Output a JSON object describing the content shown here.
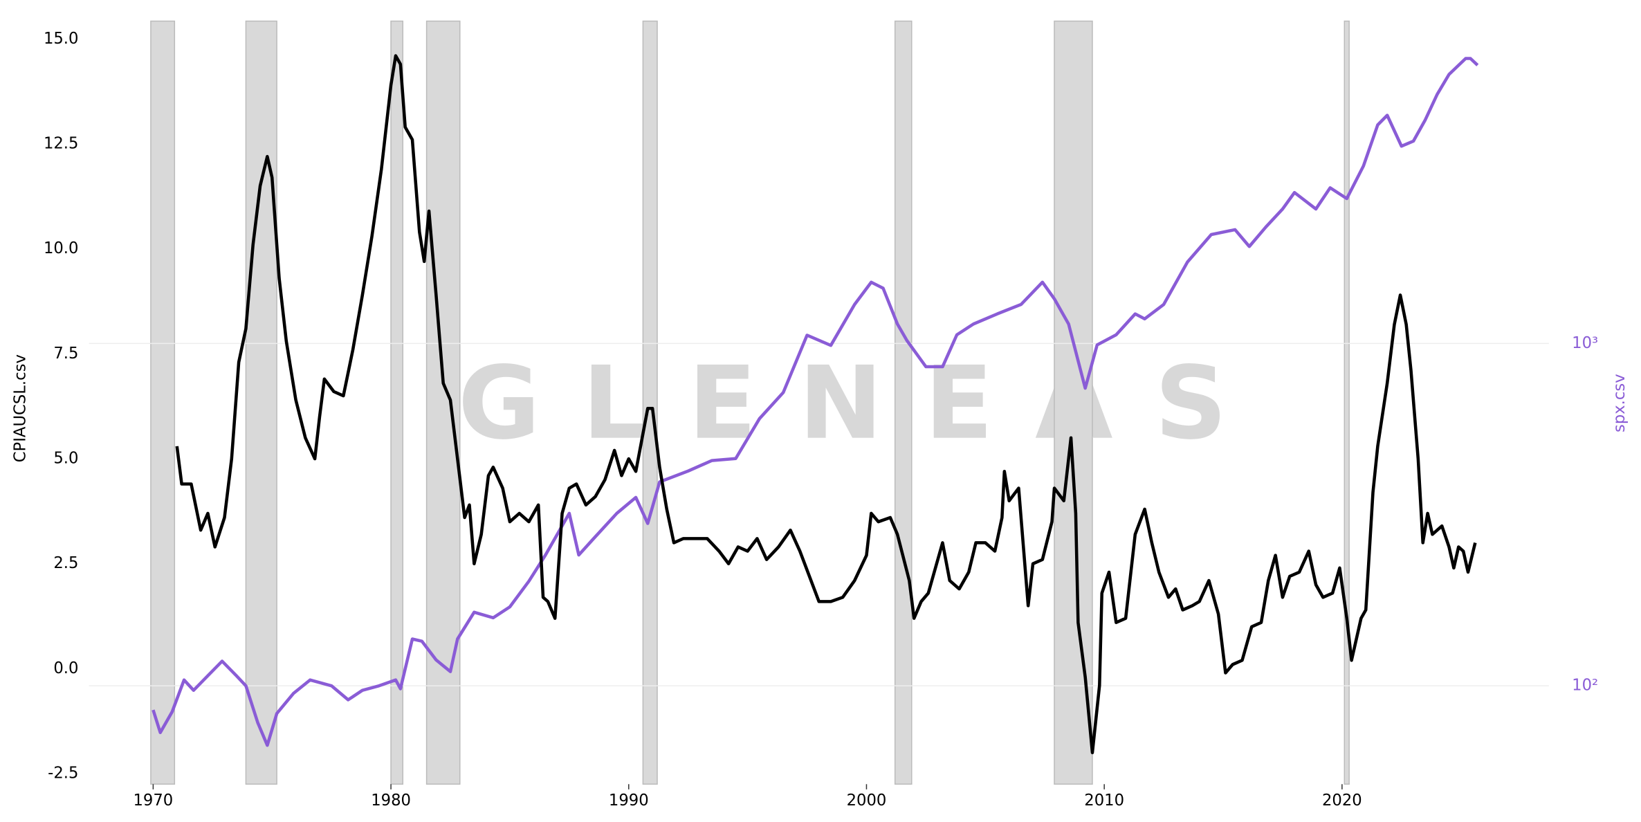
{
  "chart_data": {
    "type": "line",
    "watermark": "GLENEAS",
    "ylabel": "CPIAUCSL.csv",
    "y2label": "spx.csv",
    "y2log": true,
    "xlim": [
      1967.3,
      2028.7
    ],
    "xticks": [
      1970,
      1980,
      1990,
      2000,
      2010,
      2020
    ],
    "ylim": [
      -2.75,
      15.5
    ],
    "yticks": [
      {
        "value": 15,
        "label": "15.0"
      },
      12.5,
      {
        "value": 10,
        "label": "10.0"
      },
      7.5,
      {
        "value": 5,
        "label": "5.0"
      },
      2.5,
      {
        "value": 0,
        "label": "0.0"
      },
      -2.5
    ],
    "y2lim": [
      51.6,
      8930
    ],
    "y2ticks": [
      {
        "value": 100,
        "label": "10²"
      },
      {
        "value": 1000,
        "label": "10³"
      }
    ],
    "y2grid": true,
    "recession_color": "#d9d9d9",
    "recessions": [
      [
        1969.9,
        1970.9
      ],
      [
        1973.9,
        1975.2
      ],
      [
        1980.0,
        1980.5
      ],
      [
        1981.5,
        1982.9
      ],
      [
        1990.6,
        1991.2
      ],
      [
        2001.2,
        2001.9
      ],
      [
        2007.9,
        2009.5
      ],
      [
        2020.1,
        2020.3
      ]
    ],
    "series": [
      {
        "color": "#000000",
        "x": [
          1971.0,
          1971.2,
          1971.6,
          1972.0,
          1972.3,
          1972.6,
          1973.0,
          1973.3,
          1973.6,
          1973.9,
          1974.2,
          1974.5,
          1974.8,
          1975.0,
          1975.3,
          1975.6,
          1976.0,
          1976.4,
          1976.8,
          1977.0,
          1977.2,
          1977.6,
          1978.0,
          1978.4,
          1978.8,
          1979.2,
          1979.6,
          1980.0,
          1980.2,
          1980.4,
          1980.6,
          1980.9,
          1981.2,
          1981.4,
          1981.6,
          1981.9,
          1982.2,
          1982.5,
          1982.8,
          1983.1,
          1983.3,
          1983.5,
          1983.8,
          1984.1,
          1984.3,
          1984.7,
          1985.0,
          1985.4,
          1985.8,
          1986.2,
          1986.4,
          1986.6,
          1986.9,
          1987.2,
          1987.5,
          1987.8,
          1988.2,
          1988.6,
          1989.0,
          1989.4,
          1989.7,
          1990.0,
          1990.3,
          1990.8,
          1991.0,
          1991.3,
          1991.6,
          1991.9,
          1992.3,
          1992.8,
          1993.3,
          1993.8,
          1994.2,
          1994.6,
          1995.0,
          1995.4,
          1995.8,
          1996.3,
          1996.8,
          1997.2,
          1997.6,
          1998.0,
          1998.5,
          1999.0,
          1999.5,
          2000.0,
          2000.2,
          2000.5,
          2001.0,
          2001.3,
          2001.8,
          2002.0,
          2002.3,
          2002.6,
          2003.0,
          2003.2,
          2003.5,
          2003.9,
          2004.3,
          2004.6,
          2005.0,
          2005.4,
          2005.7,
          2005.8,
          2006.0,
          2006.4,
          2006.8,
          2007.0,
          2007.4,
          2007.8,
          2007.9,
          2008.3,
          2008.6,
          2008.8,
          2008.9,
          2009.2,
          2009.5,
          2009.8,
          2009.9,
          2010.2,
          2010.5,
          2010.9,
          2011.3,
          2011.7,
          2012.0,
          2012.3,
          2012.7,
          2013.0,
          2013.3,
          2013.7,
          2014.0,
          2014.4,
          2014.8,
          2015.1,
          2015.4,
          2015.8,
          2016.2,
          2016.6,
          2016.9,
          2017.2,
          2017.5,
          2017.8,
          2018.2,
          2018.6,
          2018.9,
          2019.2,
          2019.6,
          2019.9,
          2020.2,
          2020.4,
          2020.8,
          2021.0,
          2021.3,
          2021.5,
          2021.9,
          2022.2,
          2022.45,
          2022.7,
          2022.9,
          2023.2,
          2023.4,
          2023.6,
          2023.8,
          2024.2,
          2024.5,
          2024.7,
          2024.9,
          2025.1,
          2025.3,
          2025.6
        ],
        "values": [
          5.3,
          4.4,
          4.4,
          3.3,
          3.7,
          2.9,
          3.6,
          5.0,
          7.3,
          8.1,
          10.1,
          11.5,
          12.2,
          11.7,
          9.3,
          7.8,
          6.4,
          5.5,
          5.0,
          6.0,
          6.9,
          6.6,
          6.5,
          7.6,
          8.9,
          10.3,
          11.9,
          13.9,
          14.6,
          14.4,
          12.9,
          12.6,
          10.4,
          9.7,
          10.9,
          8.9,
          6.8,
          6.4,
          5.0,
          3.6,
          3.9,
          2.5,
          3.2,
          4.6,
          4.8,
          4.3,
          3.5,
          3.7,
          3.5,
          3.9,
          1.7,
          1.6,
          1.2,
          3.7,
          4.3,
          4.4,
          3.9,
          4.1,
          4.5,
          5.2,
          4.6,
          5.0,
          4.7,
          6.2,
          6.2,
          4.8,
          3.8,
          3.0,
          3.1,
          3.1,
          3.1,
          2.8,
          2.5,
          2.9,
          2.8,
          3.1,
          2.6,
          2.9,
          3.3,
          2.8,
          2.2,
          1.6,
          1.6,
          1.7,
          2.1,
          2.7,
          3.7,
          3.5,
          3.6,
          3.2,
          2.1,
          1.2,
          1.6,
          1.8,
          2.6,
          3.0,
          2.1,
          1.9,
          2.3,
          3.0,
          3.0,
          2.8,
          3.6,
          4.7,
          4.0,
          4.3,
          1.5,
          2.5,
          2.6,
          3.5,
          4.3,
          4.0,
          5.5,
          3.7,
          1.1,
          -0.2,
          -2.0,
          -0.4,
          1.8,
          2.3,
          1.1,
          1.2,
          3.2,
          3.8,
          3.0,
          2.3,
          1.7,
          1.9,
          1.4,
          1.5,
          1.6,
          2.1,
          1.3,
          -0.1,
          0.1,
          0.2,
          1.0,
          1.1,
          2.1,
          2.7,
          1.7,
          2.2,
          2.3,
          2.8,
          2.0,
          1.7,
          1.8,
          2.4,
          1.2,
          0.2,
          1.2,
          1.4,
          4.2,
          5.3,
          6.8,
          8.2,
          8.9,
          8.2,
          7.1,
          5.0,
          3.0,
          3.7,
          3.2,
          3.4,
          2.9,
          2.4,
          2.9,
          2.8,
          2.3,
          3.0
        ]
      },
      {
        "color": "#8a5cd6",
        "axis": "y2",
        "x": [
          1970.0,
          1970.3,
          1970.8,
          1971.3,
          1971.7,
          1972.3,
          1972.9,
          1973.5,
          1973.9,
          1974.4,
          1974.8,
          1975.2,
          1975.9,
          1976.6,
          1977.5,
          1978.2,
          1978.8,
          1979.5,
          1980.2,
          1980.4,
          1980.9,
          1981.3,
          1981.9,
          1982.5,
          1982.8,
          1983.5,
          1984.3,
          1985.0,
          1985.8,
          1986.5,
          1987.5,
          1987.9,
          1988.5,
          1989.5,
          1990.3,
          1990.8,
          1991.3,
          1992.5,
          1993.5,
          1994.5,
          1995.5,
          1996.5,
          1997.5,
          1998.5,
          1999.5,
          2000.2,
          2000.7,
          2001.3,
          2001.7,
          2002.5,
          2003.2,
          2003.8,
          2004.5,
          2005.5,
          2006.5,
          2007.4,
          2007.9,
          2008.5,
          2009.2,
          2009.7,
          2010.5,
          2011.3,
          2011.7,
          2012.5,
          2013.5,
          2014.5,
          2015.5,
          2016.1,
          2016.8,
          2017.5,
          2018.0,
          2018.9,
          2019.5,
          2020.2,
          2020.9,
          2021.5,
          2021.9,
          2022.5,
          2023.0,
          2023.5,
          2024.0,
          2024.5,
          2025.2,
          2025.4,
          2025.7
        ],
        "values": [
          85,
          73,
          84,
          104,
          97,
          107,
          118,
          107,
          100,
          78,
          67,
          83,
          95,
          104,
          100,
          91,
          97,
          100,
          104,
          98,
          137,
          135,
          119,
          110,
          137,
          164,
          158,
          170,
          202,
          241,
          319,
          241,
          268,
          319,
          355,
          298,
          394,
          424,
          455,
          461,
          603,
          719,
          1057,
          987,
          1300,
          1510,
          1450,
          1140,
          1020,
          855,
          855,
          1060,
          1140,
          1220,
          1300,
          1510,
          1350,
          1140,
          740,
          990,
          1060,
          1220,
          1180,
          1300,
          1730,
          2080,
          2150,
          1920,
          2190,
          2470,
          2760,
          2470,
          2850,
          2650,
          3300,
          4350,
          4640,
          3770,
          3900,
          4500,
          5340,
          6110,
          6800,
          6800,
          6500
        ]
      }
    ]
  }
}
